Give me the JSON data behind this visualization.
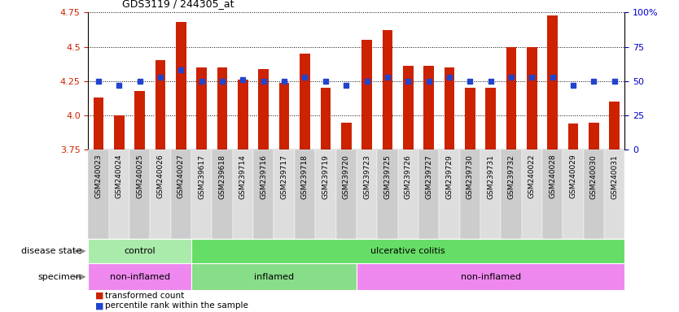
{
  "title": "GDS3119 / 244305_at",
  "samples": [
    "GSM240023",
    "GSM240024",
    "GSM240025",
    "GSM240026",
    "GSM240027",
    "GSM239617",
    "GSM239618",
    "GSM239714",
    "GSM239716",
    "GSM239717",
    "GSM239718",
    "GSM239719",
    "GSM239720",
    "GSM239723",
    "GSM239725",
    "GSM239726",
    "GSM239727",
    "GSM239729",
    "GSM239730",
    "GSM239731",
    "GSM239732",
    "GSM240022",
    "GSM240028",
    "GSM240029",
    "GSM240030",
    "GSM240031"
  ],
  "bar_values": [
    4.13,
    4.0,
    4.18,
    4.4,
    4.68,
    4.35,
    4.35,
    4.26,
    4.34,
    4.24,
    4.45,
    4.2,
    3.95,
    4.55,
    4.62,
    4.36,
    4.36,
    4.35,
    4.2,
    4.2,
    4.5,
    4.5,
    4.73,
    3.94,
    3.95,
    4.1
  ],
  "percentile_values": [
    4.25,
    4.22,
    4.25,
    4.28,
    4.33,
    4.25,
    4.25,
    4.26,
    4.25,
    4.25,
    4.28,
    4.25,
    4.22,
    4.25,
    4.28,
    4.25,
    4.25,
    4.28,
    4.25,
    4.25,
    4.28,
    4.28,
    4.28,
    4.22,
    4.25,
    4.25
  ],
  "ylim": [
    3.75,
    4.75
  ],
  "yticks_left": [
    3.75,
    4.0,
    4.25,
    4.5,
    4.75
  ],
  "yticks_right": [
    0,
    25,
    50,
    75,
    100
  ],
  "bar_color": "#CC2200",
  "percentile_color": "#2244CC",
  "disease_state_label": "disease state",
  "specimen_label": "specimen",
  "ds_groups": [
    {
      "label": "control",
      "start": 0,
      "end": 5,
      "color": "#AAEAAA"
    },
    {
      "label": "ulcerative colitis",
      "start": 5,
      "end": 26,
      "color": "#66DD66"
    }
  ],
  "sp_groups": [
    {
      "label": "non-inflamed",
      "start": 0,
      "end": 5,
      "color": "#EE88EE"
    },
    {
      "label": "inflamed",
      "start": 5,
      "end": 13,
      "color": "#88DD88"
    },
    {
      "label": "non-inflamed",
      "start": 13,
      "end": 26,
      "color": "#EE88EE"
    }
  ],
  "legend_bar_label": "transformed count",
  "legend_pct_label": "percentile rank within the sample",
  "tick_label_color_left": "#CC2200",
  "tick_label_color_right": "#0000CC",
  "xtick_bg_even": "#CCCCCC",
  "xtick_bg_odd": "#DDDDDD"
}
